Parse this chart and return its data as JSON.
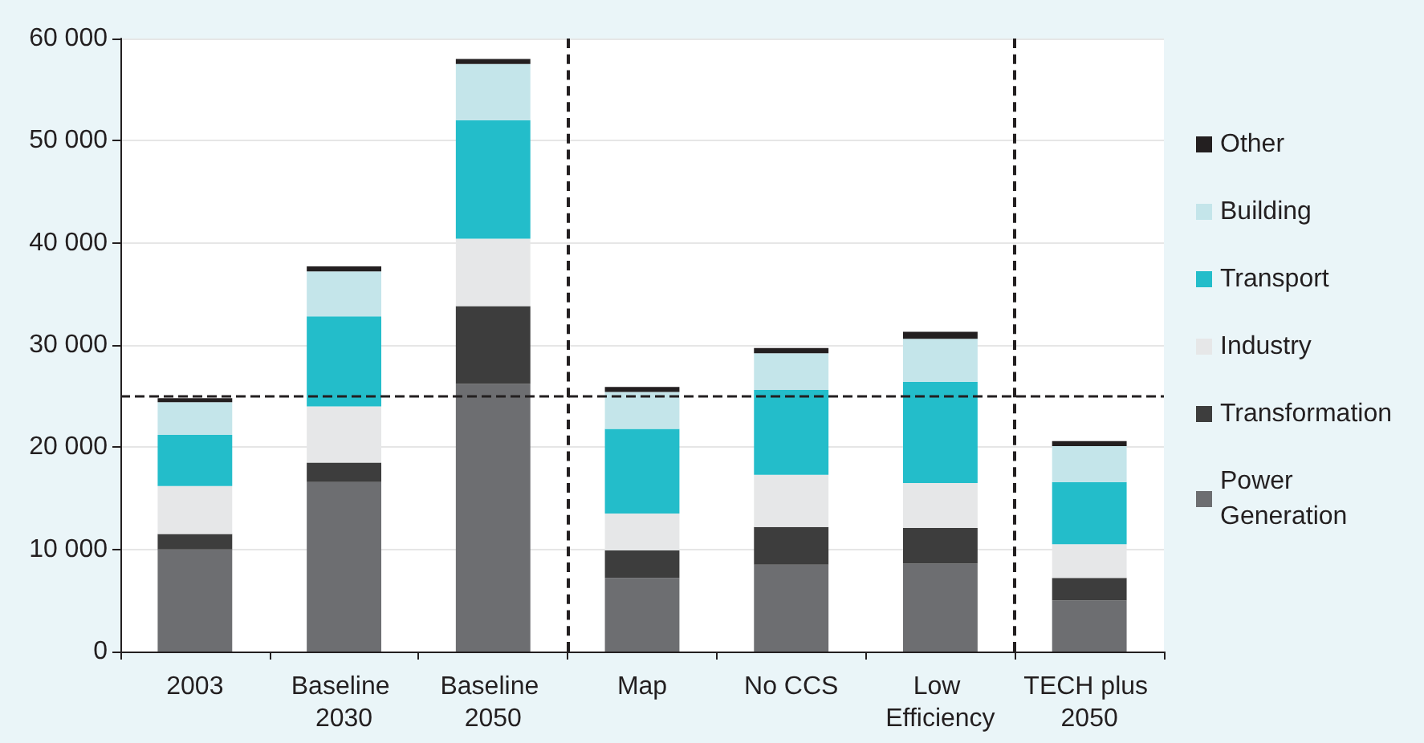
{
  "chart_data": {
    "type": "bar",
    "stacked": true,
    "categories": [
      "2003",
      "Baseline 2030",
      "Baseline 2050",
      "Map",
      "No CCS",
      "Low Efficiency",
      "TECH plus 2050"
    ],
    "series": [
      {
        "name": "Power Generation",
        "color": "#6d6e71",
        "values": [
          10000,
          16600,
          26200,
          7200,
          8500,
          8600,
          5000
        ]
      },
      {
        "name": "Transformation",
        "color": "#3d3d3d",
        "values": [
          1500,
          1900,
          7600,
          2700,
          3700,
          3500,
          2200
        ]
      },
      {
        "name": "Industry",
        "color": "#e6e7e8",
        "values": [
          4700,
          5500,
          6600,
          3600,
          5100,
          4400,
          3300
        ]
      },
      {
        "name": "Transport",
        "color": "#23bdca",
        "values": [
          5000,
          8800,
          11600,
          8300,
          8300,
          9900,
          6100
        ]
      },
      {
        "name": "Building",
        "color": "#c4e5ea",
        "values": [
          3200,
          4400,
          5500,
          3600,
          3600,
          4200,
          3500
        ]
      },
      {
        "name": "Other",
        "color": "#231f20",
        "values": [
          400,
          500,
          500,
          500,
          500,
          700,
          500
        ]
      }
    ],
    "ylim": [
      0,
      60000
    ],
    "yticks": [
      {
        "value": 0,
        "label": "0"
      },
      {
        "value": 10000,
        "label": "10 000"
      },
      {
        "value": 20000,
        "label": "20 000"
      },
      {
        "value": 30000,
        "label": "30 000"
      },
      {
        "value": 40000,
        "label": "40 000"
      },
      {
        "value": 50000,
        "label": "50 000"
      },
      {
        "value": 60000,
        "label": "60 000"
      }
    ],
    "ref_lines": [
      {
        "axis": "y",
        "value": 25000,
        "color": "#231f20",
        "line_style": "dashed"
      }
    ],
    "grid": "y",
    "legend": "right"
  }
}
